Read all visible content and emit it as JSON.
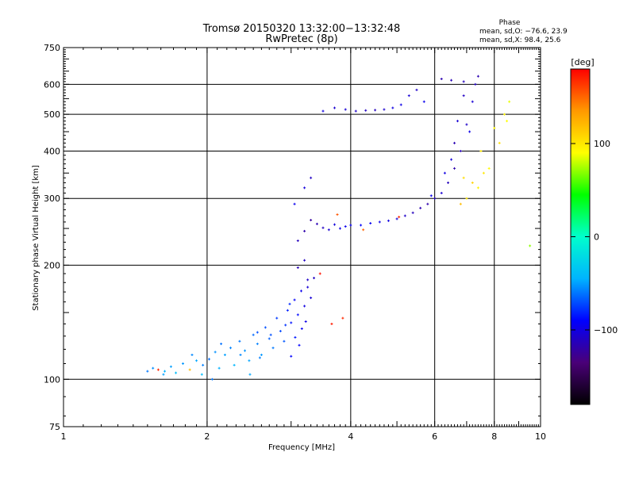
{
  "chart_data": {
    "type": "scatter",
    "title": "Tromsø 20150320 13:32:00−13:32:48",
    "subtitle": "RwPretec (8p)",
    "xlabel": "Frequency [MHz]",
    "ylabel": "Stationary phase Virtual Height [km]",
    "x_scale": "log",
    "y_scale": "log",
    "xlim": [
      1,
      10
    ],
    "ylim": [
      75,
      750
    ],
    "x_ticks": [
      1,
      2,
      4,
      6,
      8,
      10
    ],
    "x_tick_labels": [
      "1",
      "2",
      "4",
      "6",
      "8",
      "10"
    ],
    "y_ticks": [
      75,
      100,
      200,
      300,
      400,
      500,
      600,
      750
    ],
    "y_tick_labels": [
      "75",
      "100",
      "200",
      "300",
      "400",
      "500",
      "600",
      "750"
    ],
    "grid": true,
    "stats_header": "Phase",
    "stats_lines": [
      "mean, sd,O: −76.6, 23.9",
      "mean, sd,X: 98.4, 25.6"
    ],
    "colorbar": {
      "label": "[deg]",
      "range": [
        -180,
        180
      ],
      "ticks": [
        100,
        0,
        -100
      ],
      "tick_labels": [
        "100",
        "0",
        "−100"
      ],
      "colors": [
        "#000000",
        "#4a0078",
        "#0000ff",
        "#00b4ff",
        "#00ffcc",
        "#00ff00",
        "#ffff00",
        "#ff9900",
        "#ff0000"
      ]
    },
    "series": [
      {
        "values": [
          [
            1.5,
            105
          ],
          [
            1.54,
            107
          ],
          [
            1.58,
            106
          ],
          [
            1.63,
            105
          ],
          [
            1.68,
            108
          ],
          [
            1.72,
            104
          ],
          [
            1.78,
            110
          ],
          [
            1.84,
            106
          ],
          [
            1.9,
            112
          ],
          [
            1.96,
            109
          ],
          [
            2.02,
            113
          ],
          [
            2.08,
            118
          ],
          [
            2.12,
            107
          ],
          [
            2.18,
            116
          ],
          [
            2.24,
            121
          ],
          [
            2.28,
            109
          ],
          [
            2.34,
            126
          ],
          [
            2.4,
            119
          ],
          [
            2.45,
            112
          ],
          [
            2.5,
            131
          ],
          [
            2.55,
            124
          ],
          [
            2.6,
            116
          ],
          [
            2.65,
            137
          ],
          [
            2.7,
            128
          ],
          [
            2.75,
            121
          ],
          [
            2.8,
            145
          ],
          [
            2.85,
            134
          ],
          [
            2.9,
            126
          ],
          [
            2.95,
            152
          ],
          [
            3.0,
            141
          ],
          [
            3.05,
            162
          ],
          [
            3.1,
            148
          ],
          [
            3.15,
            171
          ],
          [
            3.2,
            156
          ],
          [
            3.25,
            183
          ],
          [
            3.3,
            164
          ],
          [
            3.1,
            197
          ],
          [
            3.2,
            206
          ],
          [
            3.16,
            136
          ],
          [
            2.98,
            158
          ],
          [
            1.62,
            103
          ],
          [
            1.86,
            116
          ],
          [
            2.14,
            124
          ],
          [
            2.46,
            103
          ],
          [
            2.72,
            131
          ],
          [
            2.92,
            139
          ],
          [
            3.06,
            129
          ],
          [
            3.22,
            142
          ],
          [
            3.12,
            123
          ],
          [
            2.58,
            114
          ],
          [
            3.1,
            232
          ],
          [
            3.2,
            246
          ],
          [
            3.3,
            263
          ],
          [
            3.4,
            257
          ],
          [
            3.5,
            251
          ],
          [
            3.6,
            248
          ],
          [
            3.7,
            256
          ],
          [
            3.8,
            250
          ],
          [
            3.9,
            253
          ],
          [
            4.0,
            255
          ],
          [
            4.2,
            255
          ],
          [
            4.4,
            258
          ],
          [
            4.6,
            260
          ],
          [
            4.8,
            262
          ],
          [
            5.0,
            265
          ],
          [
            5.2,
            270
          ],
          [
            5.4,
            275
          ],
          [
            5.6,
            283
          ],
          [
            5.8,
            290
          ],
          [
            6.0,
            300
          ],
          [
            6.2,
            310
          ],
          [
            6.4,
            330
          ],
          [
            6.6,
            360
          ],
          [
            6.8,
            400
          ],
          [
            7.0,
            470
          ],
          [
            7.2,
            540
          ],
          [
            7.3,
            600
          ],
          [
            7.4,
            630
          ],
          [
            7.0,
            300
          ],
          [
            7.4,
            320
          ],
          [
            7.8,
            360
          ],
          [
            8.2,
            420
          ],
          [
            8.5,
            480
          ],
          [
            8.6,
            540
          ],
          [
            6.8,
            290
          ],
          [
            7.2,
            330
          ],
          [
            7.6,
            350
          ],
          [
            3.05,
            290
          ],
          [
            3.2,
            320
          ],
          [
            3.3,
            340
          ],
          [
            3.5,
            510
          ],
          [
            3.7,
            520
          ],
          [
            3.9,
            515
          ],
          [
            4.1,
            510
          ],
          [
            4.3,
            512
          ],
          [
            4.5,
            513
          ],
          [
            4.7,
            515
          ],
          [
            4.9,
            520
          ],
          [
            5.1,
            530
          ],
          [
            5.3,
            560
          ],
          [
            5.5,
            580
          ],
          [
            5.7,
            540
          ],
          [
            6.2,
            620
          ],
          [
            6.5,
            615
          ],
          [
            6.9,
            610
          ],
          [
            8.4,
            500
          ],
          [
            9.5,
            225
          ],
          [
            4.25,
            248
          ],
          [
            3.75,
            272
          ],
          [
            5.05,
            268
          ],
          [
            6.6,
            420
          ],
          [
            6.9,
            560
          ],
          [
            6.7,
            480
          ],
          [
            7.1,
            450
          ],
          [
            6.5,
            380
          ],
          [
            6.3,
            350
          ],
          [
            5.9,
            305
          ],
          [
            6.9,
            340
          ],
          [
            7.5,
            400
          ],
          [
            8.0,
            460
          ],
          [
            3.25,
            175
          ],
          [
            3.35,
            185
          ],
          [
            3.45,
            190
          ],
          [
            3.65,
            140
          ],
          [
            3.85,
            145
          ],
          [
            2.05,
            100
          ],
          [
            1.95,
            103
          ],
          [
            2.35,
            116
          ],
          [
            2.55,
            133
          ],
          [
            3.0,
            115
          ]
        ],
        "phase_deg": [
          -60,
          -55,
          170,
          -45,
          -50,
          -40,
          -52,
          120,
          -48,
          -58,
          -62,
          -54,
          -46,
          -50,
          -57,
          -44,
          -60,
          -53,
          -49,
          -64,
          -58,
          -52,
          -70,
          -66,
          -60,
          -76,
          -72,
          -68,
          -82,
          -86,
          -92,
          -88,
          -96,
          -100,
          -108,
          -104,
          -114,
          -110,
          -94,
          -80,
          -50,
          -56,
          -62,
          -48,
          -70,
          -78,
          -84,
          -98,
          -90,
          -58,
          -112,
          -118,
          -122,
          -115,
          -110,
          -105,
          -102,
          -98,
          -96,
          -94,
          -92,
          -95,
          -98,
          -100,
          -104,
          -108,
          -112,
          -116,
          -118,
          -110,
          -105,
          -112,
          -118,
          -114,
          -108,
          -104,
          -110,
          -116,
          100,
          95,
          92,
          104,
          90,
          86,
          120,
          110,
          100,
          -96,
          -102,
          -110,
          -100,
          -106,
          -104,
          -108,
          -110,
          -112,
          -106,
          -100,
          -98,
          -104,
          -108,
          -96,
          -116,
          -114,
          -112,
          95,
          70,
          150,
          155,
          170,
          -115,
          -110,
          -104,
          -98,
          -102,
          -100,
          -96,
          105,
          100,
          92,
          -104,
          -110,
          175,
          172,
          168,
          -60,
          -40,
          -56,
          -70,
          -90
        ]
      }
    ]
  }
}
